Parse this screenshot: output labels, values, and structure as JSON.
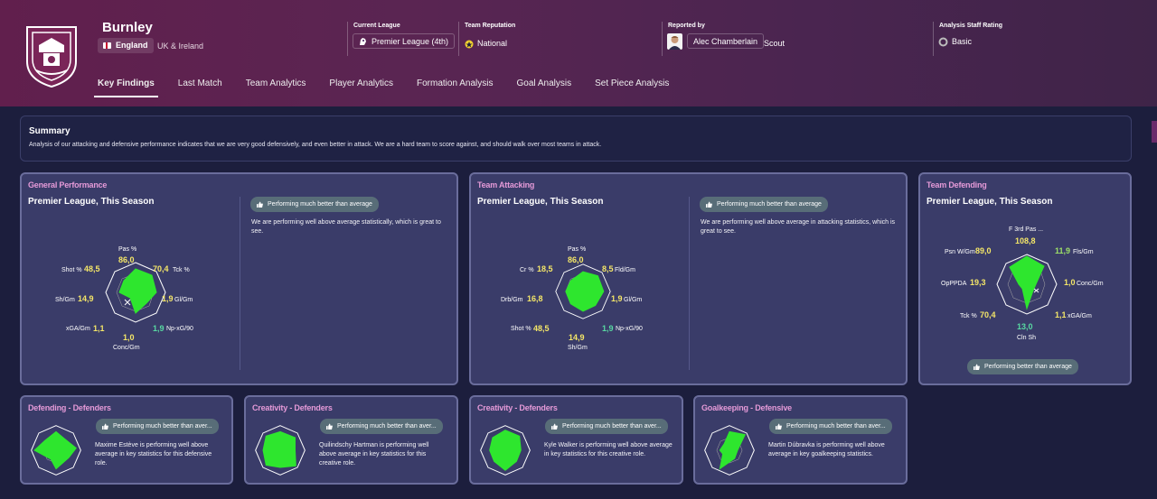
{
  "club": {
    "name": "Burnley",
    "nation": "England",
    "region": "UK & Ireland"
  },
  "header": {
    "current_league": {
      "label": "Current League",
      "value": "Premier League  (4th)"
    },
    "team_reputation": {
      "label": "Team Reputation",
      "value": "National"
    },
    "reported_by": {
      "label": "Reported by",
      "name": "Alec Chamberlain",
      "role": "Scout"
    },
    "analysis_rating": {
      "label": "Analysis Staff Rating",
      "value": "Basic"
    }
  },
  "tabs": [
    "Key Findings",
    "Last Match",
    "Team Analytics",
    "Player Analytics",
    "Formation Analysis",
    "Goal Analysis",
    "Set Piece Analysis"
  ],
  "summary": {
    "title": "Summary",
    "text": "Analysis of our attacking and defensive performance indicates that we are very good defensively, and even better in attack. We are a hard team to score against, and should walk over most teams in attack."
  },
  "general": {
    "title": "General Performance",
    "subtitle": "Premier League, This Season",
    "badge": "Performing much better than average",
    "desc": "We are performing well above average statistically, which is great to see.",
    "axes": [
      {
        "label": "Pas %",
        "value": "86,0"
      },
      {
        "label": "Tck %",
        "value": "70,4"
      },
      {
        "label": "Gl/Gm",
        "value": "1,9"
      },
      {
        "label": "Np-xG/90",
        "value": "1,9"
      },
      {
        "label": "Conc/Gm",
        "value": "1,0"
      },
      {
        "label": "xGA/Gm",
        "value": "1,1"
      },
      {
        "label": "Sh/Gm",
        "value": "14,9"
      },
      {
        "label": "Shot %",
        "value": "48,5"
      }
    ]
  },
  "attacking": {
    "title": "Team Attacking",
    "subtitle": "Premier League, This Season",
    "badge": "Performing much better than average",
    "desc": "We are performing well above average in attacking statistics, which is great to see.",
    "axes": [
      {
        "label": "Pas %",
        "value": "86,0"
      },
      {
        "label": "Fld/Gm",
        "value": "8,5"
      },
      {
        "label": "Gl/Gm",
        "value": "1,9"
      },
      {
        "label": "Np-xG/90",
        "value": "1,9"
      },
      {
        "label": "Sh/Gm",
        "value": "14,9"
      },
      {
        "label": "Shot %",
        "value": "48,5"
      },
      {
        "label": "Drb/Gm",
        "value": "16,8"
      },
      {
        "label": "Cr %",
        "value": "18,5"
      }
    ]
  },
  "defending": {
    "title": "Team Defending",
    "subtitle": "Premier League, This Season",
    "badge": "Performing better than average",
    "axes": [
      {
        "label": "F 3rd Pas ...",
        "value": "108,8"
      },
      {
        "label": "Fls/Gm",
        "value": "11,9"
      },
      {
        "label": "Conc/Gm",
        "value": "1,0"
      },
      {
        "label": "xGA/Gm",
        "value": "1,1"
      },
      {
        "label": "Cln Sh",
        "value": "13,0"
      },
      {
        "label": "Tck %",
        "value": "70,4"
      },
      {
        "label": "OpPPDA",
        "value": "19,3"
      },
      {
        "label": "Psn W/Gm",
        "value": "89,0"
      }
    ]
  },
  "players": [
    {
      "title": "Defending - Defenders",
      "badge": "Performing much better than aver...",
      "desc": "Maxime Estève is performing well above average in key statistics for this defensive role."
    },
    {
      "title": "Creativity - Defenders",
      "badge": "Performing much better than aver...",
      "desc": "Quilindschy Hartman is performing well above average in key statistics for this creative role."
    },
    {
      "title": "Creativity - Defenders",
      "badge": "Performing much better than aver...",
      "desc": "Kyle Walker is performing well above average in key statistics for this creative role."
    },
    {
      "title": "Goalkeeping - Defensive",
      "badge": "Performing much better than aver...",
      "desc": "Martin Dúbravka is performing well above average in key goalkeeping statistics."
    }
  ],
  "colors": {
    "accent_green": "#2ee62e",
    "value_yellow": "#f4e668",
    "value_teal": "#58d9a2",
    "title_pink": "#e59ad8"
  }
}
